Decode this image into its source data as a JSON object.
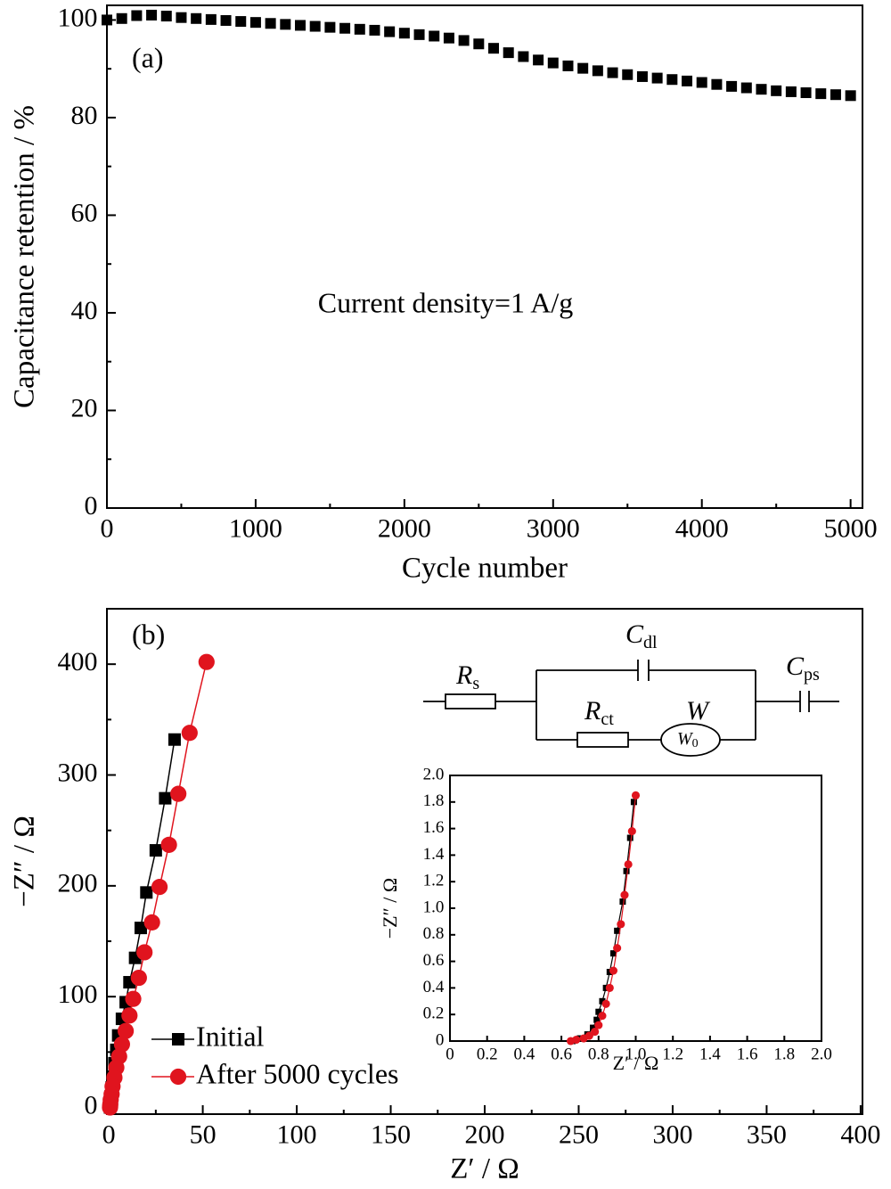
{
  "chart_data": [
    {
      "type": "scatter",
      "panel_label": "(a)",
      "annotation": "Current density=1 A/g",
      "xlabel": "Cycle number",
      "ylabel": "Capacitance retention / %",
      "xlim": [
        0,
        5080
      ],
      "xticks": [
        0,
        1000,
        2000,
        3000,
        4000,
        5000
      ],
      "xminor": [
        500,
        1500,
        2500,
        3500,
        4500
      ],
      "ylim": [
        0,
        103
      ],
      "yticks": [
        0,
        20,
        40,
        60,
        80,
        100
      ],
      "yminor": [
        10,
        30,
        50,
        70,
        90
      ],
      "line": false,
      "series": [
        {
          "color": "#000000",
          "marker": "square",
          "x": [
            0,
            100,
            200,
            300,
            400,
            500,
            600,
            700,
            800,
            900,
            1000,
            1100,
            1200,
            1300,
            1400,
            1500,
            1600,
            1700,
            1800,
            1900,
            2000,
            2100,
            2200,
            2300,
            2400,
            2500,
            2600,
            2700,
            2800,
            2900,
            3000,
            3100,
            3200,
            3300,
            3400,
            3500,
            3600,
            3700,
            3800,
            3900,
            4000,
            4100,
            4200,
            4300,
            4400,
            4500,
            4600,
            4700,
            4800,
            4900,
            5000
          ],
          "values": [
            100,
            100.3,
            100.9,
            101.0,
            100.8,
            100.5,
            100.3,
            100.1,
            99.9,
            99.7,
            99.5,
            99.3,
            99.1,
            98.9,
            98.7,
            98.5,
            98.3,
            98.1,
            97.9,
            97.6,
            97.3,
            97.0,
            96.7,
            96.3,
            95.8,
            95.1,
            94.2,
            93.3,
            92.5,
            91.8,
            91.2,
            90.6,
            90.1,
            89.6,
            89.2,
            88.8,
            88.4,
            88.1,
            87.8,
            87.5,
            87.2,
            86.8,
            86.4,
            86.1,
            85.8,
            85.5,
            85.3,
            85.1,
            84.9,
            84.7,
            84.5
          ]
        }
      ]
    },
    {
      "type": "line",
      "panel_label": "(b)",
      "xlabel": "Z′ / Ω",
      "ylabel": "−Z″ / Ω",
      "xlim": [
        -1,
        401
      ],
      "xticks": [
        0,
        50,
        100,
        150,
        200,
        250,
        300,
        350,
        400
      ],
      "xminor": [
        25,
        75,
        125,
        175,
        225,
        275,
        325,
        375
      ],
      "ylim": [
        -6,
        450
      ],
      "yticks": [
        0,
        100,
        200,
        300,
        400
      ],
      "yminor": [
        50,
        150,
        250,
        350
      ],
      "line": true,
      "legend": "lower left",
      "series": [
        {
          "name": "Initial",
          "color": "#000000",
          "marker": "square",
          "x": [
            35,
            30,
            25,
            20,
            17,
            14,
            11,
            9,
            7,
            5,
            4,
            3,
            2,
            1.5,
            1,
            0.8,
            0.7,
            0.65
          ],
          "values": [
            332,
            279,
            232,
            194,
            162,
            135,
            113,
            95,
            80,
            65,
            52,
            40,
            28,
            18,
            10,
            5,
            2,
            0
          ]
        },
        {
          "name": "After 5000 cycles",
          "color": "#e0141e",
          "marker": "circle",
          "x": [
            52,
            43,
            37,
            32,
            27,
            23,
            19,
            16,
            13,
            11,
            9,
            7,
            5.5,
            4,
            3,
            2,
            1.5,
            1,
            0.8,
            0.7,
            0.65
          ],
          "values": [
            402,
            338,
            283,
            237,
            199,
            167,
            140,
            117,
            98,
            83,
            69,
            57,
            46,
            36,
            27,
            19,
            12,
            7,
            3,
            1,
            0
          ]
        }
      ]
    },
    {
      "type": "line",
      "xlabel": "Z′ / Ω",
      "ylabel": "−Z″ / Ω",
      "xlim": [
        0,
        2.0
      ],
      "xticks": [
        0,
        0.2,
        0.4,
        0.6,
        0.8,
        {
          "value": 1.0,
          "label": "1.0"
        },
        1.2,
        1.4,
        1.6,
        1.8,
        {
          "value": 2.0,
          "label": "2.0"
        }
      ],
      "ylim": [
        0,
        2.0
      ],
      "yticks": [
        0,
        0.2,
        0.4,
        0.6,
        0.8,
        {
          "value": 1.0,
          "label": "1.0"
        },
        1.2,
        1.4,
        1.6,
        1.8,
        {
          "value": 2.0,
          "label": "2.0"
        }
      ],
      "line": true,
      "series": [
        {
          "color": "#000000",
          "marker": "square",
          "x": [
            0.66,
            0.7,
            0.74,
            0.77,
            0.79,
            0.8,
            0.82,
            0.84,
            0.86,
            0.88,
            0.9,
            0.93,
            0.95,
            0.97,
            0.99
          ],
          "values": [
            0,
            0.02,
            0.05,
            0.1,
            0.16,
            0.22,
            0.3,
            0.4,
            0.52,
            0.66,
            0.83,
            1.05,
            1.28,
            1.53,
            1.8
          ]
        },
        {
          "color": "#e0141e",
          "marker": "circle",
          "x": [
            0.65,
            0.68,
            0.72,
            0.75,
            0.78,
            0.8,
            0.82,
            0.84,
            0.86,
            0.88,
            0.9,
            0.92,
            0.94,
            0.96,
            0.98,
            1.0
          ],
          "values": [
            0,
            0.01,
            0.02,
            0.04,
            0.07,
            0.12,
            0.19,
            0.28,
            0.4,
            0.53,
            0.7,
            0.88,
            1.1,
            1.33,
            1.58,
            1.85
          ]
        }
      ]
    }
  ],
  "circuit": {
    "elements": [
      {
        "symbol": "R",
        "subscript": "s"
      },
      {
        "symbol": "C",
        "subscript": "dl"
      },
      {
        "symbol": "R",
        "subscript": "ct"
      },
      {
        "symbol": "W"
      },
      {
        "symbol": "W",
        "subscript": "0"
      },
      {
        "symbol": "C",
        "subscript": "ps"
      }
    ]
  }
}
